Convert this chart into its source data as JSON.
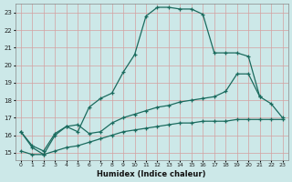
{
  "background_color": "#cce8e8",
  "grid_color": "#b8d8d8",
  "line_color": "#1a6b5e",
  "xlabel": "Humidex (Indice chaleur)",
  "xlim": [
    -0.5,
    23.5
  ],
  "ylim": [
    14.6,
    23.5
  ],
  "yticks": [
    15,
    16,
    17,
    18,
    19,
    20,
    21,
    22,
    23
  ],
  "xticks": [
    0,
    1,
    2,
    3,
    4,
    5,
    6,
    7,
    8,
    9,
    10,
    11,
    12,
    13,
    14,
    15,
    16,
    17,
    18,
    19,
    20,
    21,
    22,
    23
  ],
  "curve_main_x": [
    0,
    1,
    2,
    3,
    4,
    5,
    6,
    7,
    8,
    9,
    10,
    11,
    12,
    13,
    14,
    15,
    16,
    17,
    18,
    19,
    20,
    21
  ],
  "curve_main_y": [
    16.2,
    15.3,
    14.9,
    16.0,
    16.5,
    16.2,
    17.6,
    18.1,
    18.4,
    19.6,
    20.6,
    22.8,
    23.3,
    23.3,
    23.2,
    23.2,
    22.9,
    20.7,
    20.7,
    20.7,
    20.5,
    18.2
  ],
  "curve_mid_x": [
    0,
    1,
    2,
    3,
    4,
    5,
    6,
    7,
    8,
    9,
    10,
    11,
    12,
    13,
    14,
    15,
    16,
    17,
    18,
    19,
    20,
    21,
    22,
    23
  ],
  "curve_mid_y": [
    16.2,
    15.4,
    15.1,
    16.1,
    16.5,
    16.6,
    16.1,
    16.2,
    16.7,
    17.0,
    17.2,
    17.4,
    17.6,
    17.7,
    17.9,
    18.0,
    18.1,
    18.2,
    18.5,
    19.5,
    19.5,
    18.2,
    17.8,
    17.0
  ],
  "curve_flat_x": [
    0,
    1,
    2,
    3,
    4,
    5,
    6,
    7,
    8,
    9,
    10,
    11,
    12,
    13,
    14,
    15,
    16,
    17,
    18,
    19,
    20,
    21,
    22,
    23
  ],
  "curve_flat_y": [
    15.1,
    14.9,
    14.9,
    15.1,
    15.3,
    15.4,
    15.6,
    15.8,
    16.0,
    16.2,
    16.3,
    16.4,
    16.5,
    16.6,
    16.7,
    16.7,
    16.8,
    16.8,
    16.8,
    16.9,
    16.9,
    16.9,
    16.9,
    16.9
  ]
}
